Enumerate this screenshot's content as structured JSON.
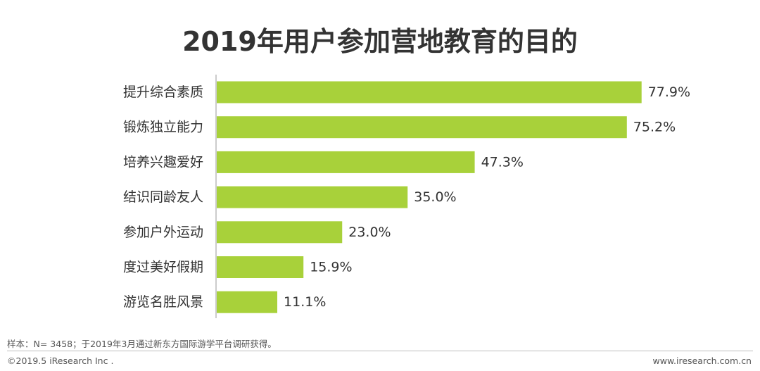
{
  "chart_data": {
    "type": "bar",
    "orientation": "horizontal",
    "title": "2019年用户参加营地教育的目的",
    "categories": [
      "提升综合素质",
      "锻炼独立能力",
      "培养兴趣爱好",
      "结识同龄友人",
      "参加户外运动",
      "度过美好假期",
      "游览名胜风景"
    ],
    "values": [
      77.9,
      75.2,
      47.3,
      35.0,
      23.0,
      15.9,
      11.1
    ],
    "value_labels": [
      "77.9%",
      "75.2%",
      "47.3%",
      "35.0%",
      "23.0%",
      "15.9%",
      "11.1%"
    ],
    "unit": "%",
    "xlim": [
      0,
      100
    ],
    "grid": false,
    "bar_color": "#a8d13a",
    "axis_color": "#999999"
  },
  "footer": {
    "source": "样本：N= 3458；于2019年3月通过新东方国际游学平台调研获得。",
    "copyright": "©2019.5 iResearch Inc .",
    "website": "www.iresearch.com.cn"
  }
}
